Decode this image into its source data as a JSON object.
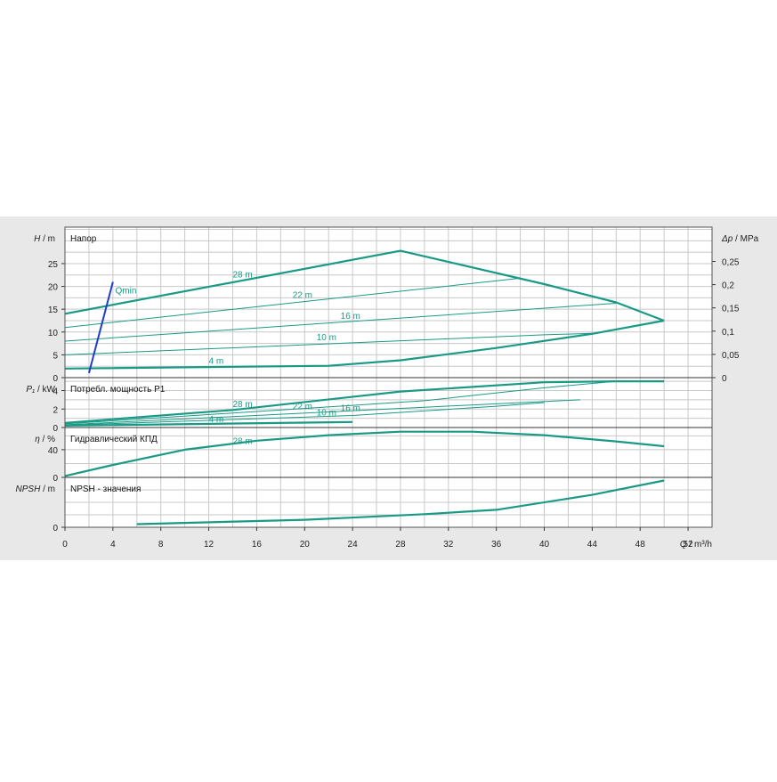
{
  "colors": {
    "panel_bg": "#e8e8e8",
    "plot_bg": "#ffffff",
    "curve": "#1a9a86",
    "qmin": "#1f3ec8"
  },
  "chart_data": {
    "type": "line",
    "x_axis": {
      "label_var": "Q",
      "label_unit": " / m³/h",
      "min": 0,
      "max": 54,
      "ticks": [
        0,
        4,
        8,
        12,
        16,
        20,
        24,
        28,
        32,
        36,
        40,
        44,
        48,
        52
      ]
    },
    "panels": [
      {
        "key": "head",
        "title": "Напор",
        "y_var": "H",
        "y_unit": " / m",
        "ylim": [
          0,
          33
        ],
        "ticks": [
          0,
          5,
          10,
          15,
          20,
          25
        ],
        "right_axis": {
          "var": "Δp",
          "unit": " / MPa",
          "ticks": [
            0,
            0.05,
            0.1,
            0.15,
            0.2,
            0.25
          ],
          "labels": [
            "0",
            "0,05",
            "0,1",
            "0,15",
            "0,2",
            "0,25"
          ],
          "factor": 0.00981
        },
        "series": [
          {
            "name": "28 m",
            "bold": true,
            "label_at": [
              14,
              22
            ],
            "points": [
              [
                0,
                14
              ],
              [
                28,
                27.8
              ],
              [
                40,
                20.5
              ],
              [
                46,
                16.5
              ],
              [
                50,
                12.5
              ]
            ]
          },
          {
            "name": "22 m",
            "bold": false,
            "label_at": [
              19,
              17.5
            ],
            "points": [
              [
                0,
                11
              ],
              [
                38,
                21.8
              ],
              [
                40,
                20.5
              ]
            ]
          },
          {
            "name": "16 m",
            "bold": false,
            "label_at": [
              23,
              12.9
            ],
            "points": [
              [
                0,
                8
              ],
              [
                46,
                16.3
              ]
            ]
          },
          {
            "name": "10 m",
            "bold": false,
            "label_at": [
              21,
              8.2
            ],
            "points": [
              [
                0,
                5
              ],
              [
                40,
                9.4
              ],
              [
                44,
                9.7
              ]
            ]
          },
          {
            "name": "4 m",
            "bold": true,
            "label_at": [
              12,
              3.0
            ],
            "points": [
              [
                0,
                2
              ],
              [
                22,
                2.6
              ],
              [
                28,
                3.8
              ],
              [
                36,
                6.5
              ],
              [
                44,
                9.6
              ],
              [
                50,
                12.5
              ]
            ]
          }
        ],
        "qmin": {
          "name": "Qmin",
          "label_at": [
            4.2,
            18.5
          ],
          "points": [
            [
              2,
              1
            ],
            [
              4,
              21
            ]
          ]
        }
      },
      {
        "key": "power",
        "title": "Потребл. мощность P1",
        "y_var": "P₁",
        "y_unit": " / kW",
        "ylim": [
          0,
          5.4
        ],
        "ticks": [
          0,
          2,
          4
        ],
        "series": [
          {
            "name": "28 m",
            "bold": true,
            "label_at": [
              14,
              2.2
            ],
            "points": [
              [
                0,
                0.5
              ],
              [
                14,
                1.9
              ],
              [
                28,
                3.9
              ],
              [
                40,
                4.9
              ],
              [
                46,
                5.0
              ],
              [
                50,
                5.0
              ]
            ]
          },
          {
            "name": "22 m",
            "bold": false,
            "label_at": [
              19,
              2.0
            ],
            "points": [
              [
                0,
                0.4
              ],
              [
                30,
                2.9
              ],
              [
                40,
                4.3
              ],
              [
                46,
                5.0
              ]
            ]
          },
          {
            "name": "16 m",
            "bold": false,
            "label_at": [
              23,
              1.8
            ],
            "points": [
              [
                0,
                0.3
              ],
              [
                30,
                2.2
              ],
              [
                43,
                3.0
              ]
            ]
          },
          {
            "name": "10 m",
            "bold": false,
            "label_at": [
              21,
              1.3
            ],
            "points": [
              [
                0,
                0.25
              ],
              [
                24,
                1.3
              ],
              [
                36,
                2.3
              ],
              [
                40,
                2.7
              ]
            ]
          },
          {
            "name": "4 m",
            "bold": true,
            "label_at": [
              12,
              0.6
            ],
            "points": [
              [
                0,
                0.2
              ],
              [
                24,
                0.6
              ]
            ]
          }
        ]
      },
      {
        "key": "eff",
        "title": "Гидравлический КПД",
        "y_var": "η",
        "y_unit": " / %",
        "ylim": [
          0,
          72
        ],
        "ticks": [
          0,
          40
        ],
        "series": [
          {
            "name": "28 m",
            "bold": true,
            "label_at": [
              14,
              48
            ],
            "points": [
              [
                0,
                2
              ],
              [
                4,
                18
              ],
              [
                10,
                40
              ],
              [
                16,
                53
              ],
              [
                22,
                61
              ],
              [
                28,
                66
              ],
              [
                34,
                66
              ],
              [
                40,
                61
              ],
              [
                46,
                52
              ],
              [
                50,
                45
              ]
            ]
          }
        ]
      },
      {
        "key": "npsh",
        "title": "NPSH - значения",
        "y_var": "NPSH",
        "y_unit": " / m",
        "ylim": [
          0,
          8
        ],
        "ticks": [
          0
        ],
        "series": [
          {
            "name": "",
            "bold": true,
            "points": [
              [
                6,
                0.5
              ],
              [
                20,
                1.2
              ],
              [
                30,
                2.1
              ],
              [
                36,
                2.8
              ],
              [
                44,
                5.2
              ],
              [
                50,
                7.5
              ]
            ]
          }
        ]
      }
    ]
  }
}
